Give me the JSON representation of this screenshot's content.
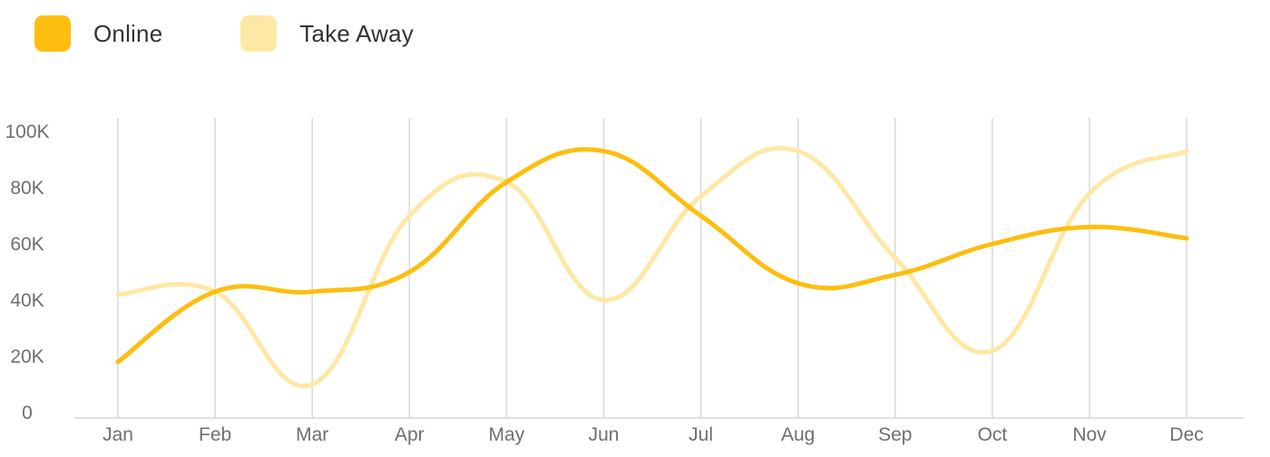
{
  "legend": {
    "online_label": "Online",
    "takeaway_label": "Take Away"
  },
  "colors": {
    "online": "#fdbe10",
    "takeaway": "#fee8a5",
    "grid": "#d9d9d9",
    "axis_text": "#6f6f6f"
  },
  "chart_data": {
    "type": "line",
    "smooth": true,
    "grid": "vertical",
    "legend_position": "top-left",
    "categories": [
      "Jan",
      "Feb",
      "Mar",
      "Apr",
      "May",
      "Jun",
      "Jul",
      "Aug",
      "Sep",
      "Oct",
      "Nov",
      "Dec"
    ],
    "y_ticks": [
      "0",
      "20K",
      "40K",
      "60K",
      "80K",
      "100K"
    ],
    "ylim": [
      0,
      100000
    ],
    "series": [
      {
        "name": "Online",
        "values": [
          18000,
          43000,
          43000,
          50000,
          82000,
          93000,
          70000,
          46000,
          49000,
          60000,
          66000,
          62000
        ]
      },
      {
        "name": "Take Away",
        "values": [
          42000,
          43000,
          10000,
          70000,
          82000,
          40000,
          77000,
          93000,
          55000,
          22000,
          78000,
          93000
        ]
      }
    ]
  }
}
